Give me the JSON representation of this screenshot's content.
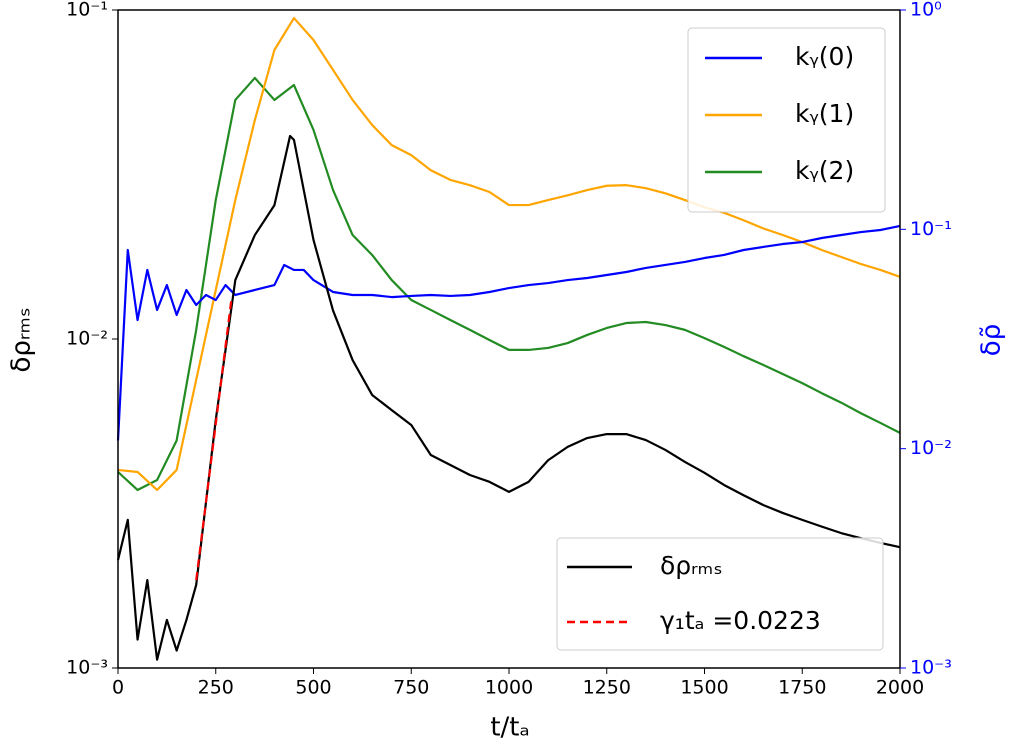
{
  "chart_data": {
    "type": "line",
    "xlabel": "t/tₐ",
    "ylabel": "δρᵣₘₛ",
    "y2label": "δρ̃",
    "xlim": [
      0,
      2000
    ],
    "xticks": [
      0,
      250,
      500,
      750,
      1000,
      1250,
      1500,
      1750,
      2000
    ],
    "ylim": [
      0.001,
      0.1
    ],
    "yticks": [
      {
        "value": 0.001,
        "label": "10⁻³"
      },
      {
        "value": 0.01,
        "label": "10⁻²"
      },
      {
        "value": 0.1,
        "label": "10⁻¹"
      }
    ],
    "y2lim": [
      0.001,
      1
    ],
    "y2ticks": [
      {
        "value": 0.001,
        "label": "10⁻³"
      },
      {
        "value": 0.01,
        "label": "10⁻²"
      },
      {
        "value": 0.1,
        "label": "10⁻¹"
      },
      {
        "value": 1,
        "label": "10⁰"
      }
    ],
    "yscale": "log",
    "y2scale": "log",
    "y2color": "#0000ff",
    "series": [
      {
        "name": "kᵧ(0)",
        "color": "#0000ff",
        "axis": "y2",
        "legend": "upper right",
        "linestyle": "solid",
        "x": [
          0,
          25,
          50,
          75,
          100,
          125,
          150,
          175,
          200,
          225,
          250,
          275,
          300,
          350,
          400,
          425,
          450,
          475,
          500,
          550,
          600,
          650,
          700,
          750,
          800,
          850,
          900,
          950,
          1000,
          1050,
          1100,
          1150,
          1200,
          1250,
          1300,
          1350,
          1400,
          1450,
          1500,
          1550,
          1600,
          1650,
          1700,
          1750,
          1800,
          1850,
          1900,
          1950,
          2000
        ],
        "values": [
          0.0109,
          0.0805,
          0.0386,
          0.0653,
          0.0429,
          0.0557,
          0.0407,
          0.0529,
          0.0452,
          0.0502,
          0.0476,
          0.0557,
          0.0502,
          0.0529,
          0.0557,
          0.0688,
          0.0653,
          0.0653,
          0.0587,
          0.0518,
          0.0502,
          0.0502,
          0.0491,
          0.0497,
          0.0502,
          0.0497,
          0.0502,
          0.0518,
          0.054,
          0.0557,
          0.0569,
          0.0587,
          0.06,
          0.0619,
          0.0639,
          0.0667,
          0.0688,
          0.071,
          0.074,
          0.0764,
          0.0805,
          0.0831,
          0.0857,
          0.0875,
          0.0913,
          0.0942,
          0.0972,
          0.0993,
          0.1036
        ]
      },
      {
        "name": "kᵧ(1)",
        "color": "#ffa500",
        "axis": "y2",
        "legend": "upper right",
        "linestyle": "solid",
        "x": [
          0,
          50,
          100,
          150,
          200,
          250,
          300,
          350,
          400,
          450,
          500,
          550,
          600,
          650,
          700,
          750,
          800,
          850,
          900,
          950,
          1000,
          1050,
          1100,
          1150,
          1200,
          1250,
          1300,
          1350,
          1400,
          1450,
          1500,
          1550,
          1600,
          1650,
          1700,
          1750,
          1800,
          1850,
          1900,
          1950,
          2000
        ],
        "values": [
          0.008,
          0.00783,
          0.00648,
          0.008,
          0.0206,
          0.0529,
          0.136,
          0.315,
          0.657,
          0.919,
          0.73,
          0.533,
          0.389,
          0.299,
          0.242,
          0.218,
          0.186,
          0.168,
          0.159,
          0.148,
          0.129,
          0.129,
          0.136,
          0.143,
          0.151,
          0.158,
          0.159,
          0.154,
          0.146,
          0.136,
          0.126,
          0.119,
          0.11,
          0.101,
          0.0942,
          0.0875,
          0.0805,
          0.0748,
          0.0695,
          0.0653,
          0.0607
        ]
      },
      {
        "name": "kᵧ(2)",
        "color": "#228b22",
        "axis": "y2",
        "legend": "upper right",
        "linestyle": "solid",
        "x": [
          0,
          50,
          100,
          150,
          200,
          250,
          300,
          350,
          400,
          450,
          500,
          550,
          600,
          650,
          700,
          750,
          800,
          850,
          900,
          950,
          1000,
          1050,
          1100,
          1150,
          1200,
          1250,
          1300,
          1350,
          1400,
          1450,
          1500,
          1550,
          1600,
          1650,
          1700,
          1750,
          1800,
          1850,
          1900,
          1950,
          2000
        ],
        "values": [
          0.00783,
          0.00648,
          0.0072,
          0.0109,
          0.0348,
          0.136,
          0.389,
          0.49,
          0.389,
          0.455,
          0.284,
          0.151,
          0.0942,
          0.0764,
          0.0587,
          0.0476,
          0.0429,
          0.0386,
          0.0348,
          0.0313,
          0.0282,
          0.0282,
          0.0288,
          0.0303,
          0.033,
          0.0355,
          0.0374,
          0.0378,
          0.0366,
          0.0348,
          0.0319,
          0.0291,
          0.0264,
          0.0241,
          0.0219,
          0.0199,
          0.0179,
          0.0162,
          0.0145,
          0.0131,
          0.0118
        ]
      },
      {
        "name": "δρᵣₘₛ",
        "color": "#000000",
        "axis": "y",
        "legend": "lower right",
        "linestyle": "solid",
        "x": [
          0,
          25,
          50,
          75,
          100,
          125,
          150,
          175,
          200,
          250,
          300,
          350,
          400,
          440,
          450,
          500,
          550,
          600,
          650,
          700,
          750,
          800,
          850,
          900,
          950,
          1000,
          1050,
          1100,
          1150,
          1200,
          1250,
          1300,
          1350,
          1400,
          1450,
          1500,
          1550,
          1600,
          1650,
          1700,
          1750,
          1800,
          1850,
          1900,
          1950,
          2000
        ],
        "values": [
          0.00213,
          0.00282,
          0.00122,
          0.00185,
          0.00106,
          0.0014,
          0.00113,
          0.0014,
          0.00179,
          0.00568,
          0.0151,
          0.0207,
          0.0255,
          0.0414,
          0.0403,
          0.02,
          0.0122,
          0.00863,
          0.00676,
          0.00608,
          0.00548,
          0.00444,
          0.00414,
          0.00386,
          0.00368,
          0.00343,
          0.00368,
          0.00428,
          0.0047,
          0.005,
          0.00514,
          0.00514,
          0.00493,
          0.0046,
          0.00423,
          0.00392,
          0.0036,
          0.00335,
          0.00313,
          0.00296,
          0.00282,
          0.00269,
          0.00257,
          0.00248,
          0.0024,
          0.00233
        ]
      },
      {
        "name": "γ₁tₐ =0.0223",
        "color": "#ff0000",
        "axis": "y",
        "legend": "lower right",
        "linestyle": "dashed",
        "x": [
          200,
          290
        ],
        "values": [
          0.00185,
          0.0132
        ]
      }
    ]
  }
}
